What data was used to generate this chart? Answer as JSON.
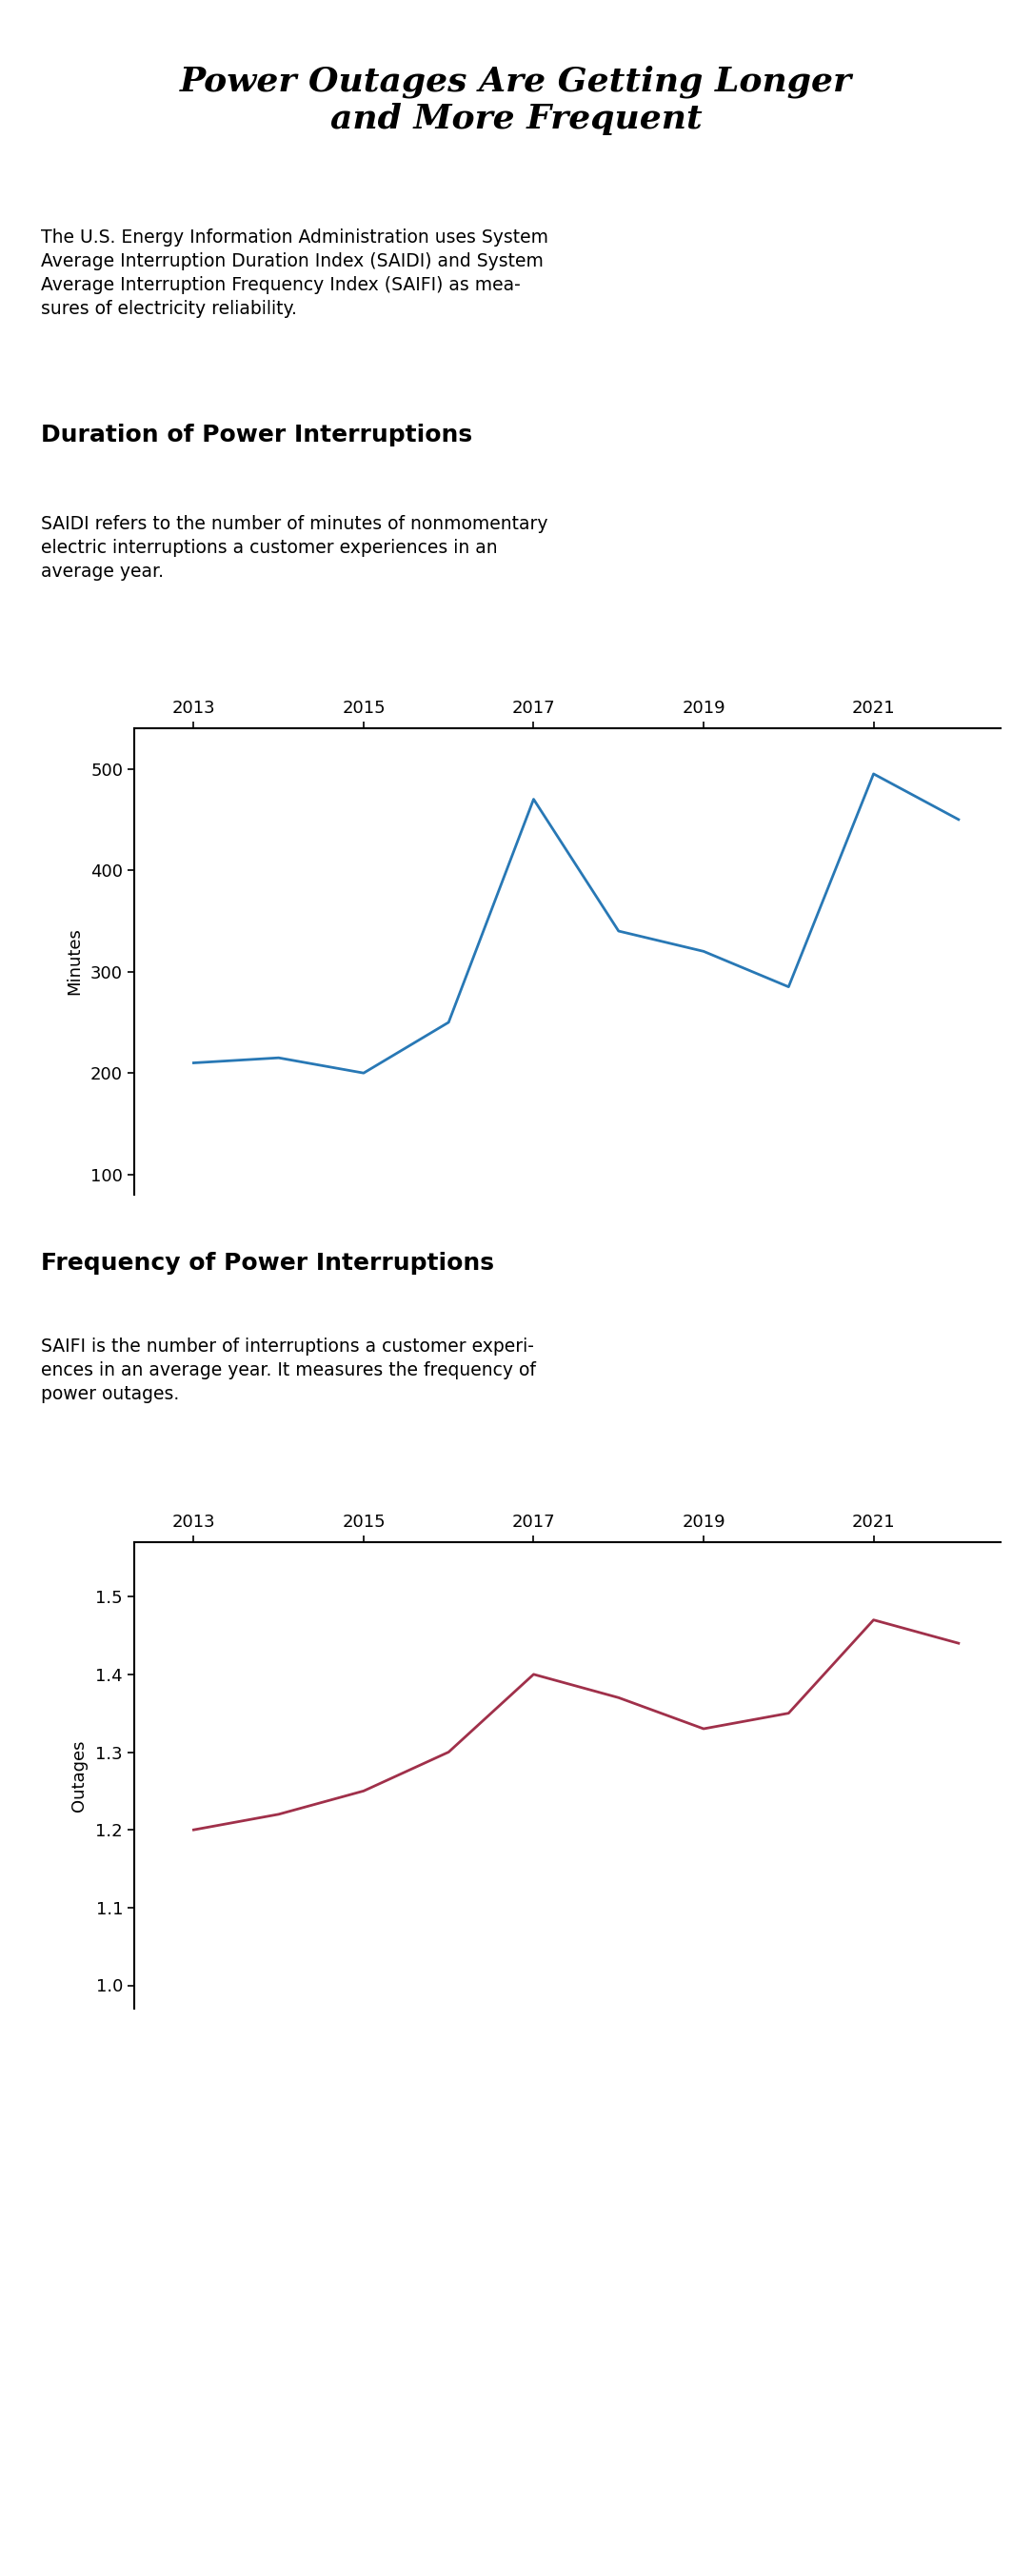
{
  "title_line1": "Power Outages Are Getting Longer",
  "title_line2": "and More Frequent",
  "title_bg_color": "#e0e0e0",
  "intro_text": "The U.S. Energy Information Administration uses System\nAverage Interruption Duration Index (SAIDI) and System\nAverage Interruption Frequency Index (SAIFI) as mea-\nsures of electricity reliability.",
  "section1_title": "Duration of Power Interruptions",
  "section1_desc": "SAIDI refers to the number of minutes of nonmomentary\nelectric interruptions a customer experiences in an\naverage year.",
  "section2_title": "Frequency of Power Interruptions",
  "section2_desc": "SAIFI is the number of interruptions a customer experi-\nences in an average year. It measures the frequency of\npower outages.",
  "saidi_years": [
    2013,
    2014,
    2015,
    2016,
    2017,
    2018,
    2019,
    2020,
    2021,
    2022
  ],
  "saidi_values": [
    210,
    215,
    200,
    250,
    470,
    340,
    320,
    285,
    495,
    450
  ],
  "saidi_color": "#2878b5",
  "saidi_ylabel": "Minutes",
  "saidi_ylim": [
    80,
    540
  ],
  "saidi_yticks": [
    100,
    200,
    300,
    400,
    500
  ],
  "saifi_years": [
    2013,
    2014,
    2015,
    2016,
    2017,
    2018,
    2019,
    2020,
    2021,
    2022
  ],
  "saifi_values": [
    1.2,
    1.22,
    1.25,
    1.3,
    1.4,
    1.37,
    1.33,
    1.35,
    1.47,
    1.44
  ],
  "saifi_color": "#a0304a",
  "saifi_ylabel": "Outages",
  "saifi_ylim": [
    0.97,
    1.57
  ],
  "saifi_yticks": [
    1.0,
    1.1,
    1.2,
    1.3,
    1.4,
    1.5
  ],
  "xticks": [
    2013,
    2015,
    2017,
    2019,
    2021
  ],
  "background_color": "#ffffff",
  "text_color": "#000000",
  "linewidth": 2.0
}
